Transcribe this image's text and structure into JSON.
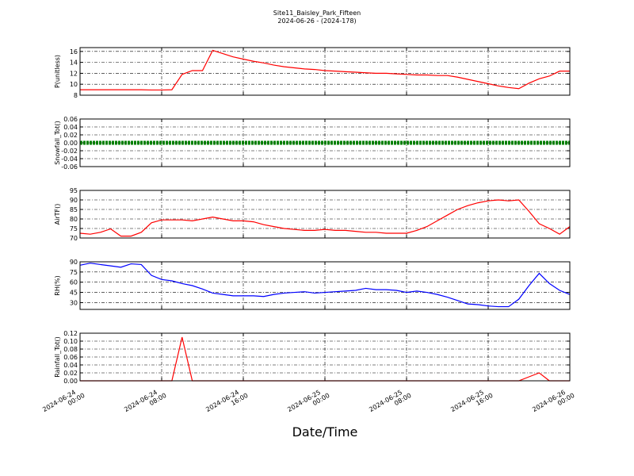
{
  "title": "Site11_Baisley_Park_Fifteen",
  "subtitle": "2024-06-26 - (2024-178)",
  "chart_data": [
    {
      "type": "line",
      "ylabel": "P(unitless)",
      "color": "#ff0000",
      "grid": true,
      "xlim": [
        "2024-06-24 00:00",
        "2024-06-26 00:00"
      ],
      "xticks": [
        "2024-06-24 00:00",
        "2024-06-24 08:00",
        "2024-06-24 16:00",
        "2024-06-25 00:00",
        "2024-06-25 08:00",
        "2024-06-25 16:00",
        "2024-06-26 00:00"
      ],
      "ylim": [
        8,
        16.7
      ],
      "yticks": [
        8,
        10,
        12,
        14,
        16
      ],
      "x": [
        "2024-06-24 00:00",
        "2024-06-24 01:00",
        "2024-06-24 02:00",
        "2024-06-24 03:00",
        "2024-06-24 04:00",
        "2024-06-24 05:00",
        "2024-06-24 06:00",
        "2024-06-24 07:00",
        "2024-06-24 08:00",
        "2024-06-24 09:00",
        "2024-06-24 10:00",
        "2024-06-24 11:00",
        "2024-06-24 12:00",
        "2024-06-24 13:00",
        "2024-06-24 14:00",
        "2024-06-24 15:00",
        "2024-06-24 16:00",
        "2024-06-24 17:00",
        "2024-06-24 18:00",
        "2024-06-24 19:00",
        "2024-06-24 20:00",
        "2024-06-24 21:00",
        "2024-06-24 22:00",
        "2024-06-24 23:00",
        "2024-06-25 00:00",
        "2024-06-25 01:00",
        "2024-06-25 02:00",
        "2024-06-25 03:00",
        "2024-06-25 04:00",
        "2024-06-25 05:00",
        "2024-06-25 06:00",
        "2024-06-25 07:00",
        "2024-06-25 08:00",
        "2024-06-25 09:00",
        "2024-06-25 10:00",
        "2024-06-25 11:00",
        "2024-06-25 12:00",
        "2024-06-25 13:00",
        "2024-06-25 14:00",
        "2024-06-25 15:00",
        "2024-06-25 16:00",
        "2024-06-25 17:00",
        "2024-06-25 18:00",
        "2024-06-25 19:00",
        "2024-06-25 20:00",
        "2024-06-25 21:00",
        "2024-06-25 22:00",
        "2024-06-25 23:00",
        "2024-06-26 00:00"
      ],
      "values": [
        9.0,
        9.0,
        9.0,
        9.0,
        9.0,
        9.0,
        9.0,
        8.95,
        8.95,
        9.0,
        11.8,
        12.5,
        12.5,
        16.2,
        15.6,
        15.0,
        14.6,
        14.2,
        13.9,
        13.5,
        13.2,
        13.0,
        12.8,
        12.7,
        12.5,
        12.4,
        12.3,
        12.2,
        12.1,
        12.0,
        12.0,
        11.9,
        11.8,
        11.7,
        11.7,
        11.6,
        11.6,
        11.3,
        10.9,
        10.5,
        10.1,
        9.7,
        9.4,
        9.2,
        10.2,
        11.0,
        11.5,
        12.4,
        12.4
      ]
    },
    {
      "type": "line",
      "ylabel": "Snowfall_Tot()",
      "color": "#008000",
      "grid": true,
      "xlim": [
        "2024-06-24 00:00",
        "2024-06-26 00:00"
      ],
      "xticks": [
        "2024-06-24 00:00",
        "2024-06-24 08:00",
        "2024-06-24 16:00",
        "2024-06-25 00:00",
        "2024-06-25 08:00",
        "2024-06-25 16:00",
        "2024-06-26 00:00"
      ],
      "ylim": [
        -0.06,
        0.06
      ],
      "yticks": [
        -0.06,
        -0.04,
        -0.02,
        {
          "value": 0,
          "label": "0.00"
        },
        0.02,
        0.04,
        0.06
      ],
      "x": [
        "2024-06-24 00:00",
        "2024-06-24 01:00",
        "2024-06-24 02:00",
        "2024-06-24 03:00",
        "2024-06-24 04:00",
        "2024-06-24 05:00",
        "2024-06-24 06:00",
        "2024-06-24 07:00",
        "2024-06-24 08:00",
        "2024-06-24 09:00",
        "2024-06-24 10:00",
        "2024-06-24 11:00",
        "2024-06-24 12:00",
        "2024-06-24 13:00",
        "2024-06-24 14:00",
        "2024-06-24 15:00",
        "2024-06-24 16:00",
        "2024-06-24 17:00",
        "2024-06-24 18:00",
        "2024-06-24 19:00",
        "2024-06-24 20:00",
        "2024-06-24 21:00",
        "2024-06-24 22:00",
        "2024-06-24 23:00",
        "2024-06-25 00:00",
        "2024-06-25 01:00",
        "2024-06-25 02:00",
        "2024-06-25 03:00",
        "2024-06-25 04:00",
        "2024-06-25 05:00",
        "2024-06-25 06:00",
        "2024-06-25 07:00",
        "2024-06-25 08:00",
        "2024-06-25 09:00",
        "2024-06-25 10:00",
        "2024-06-25 11:00",
        "2024-06-25 12:00",
        "2024-06-25 13:00",
        "2024-06-25 14:00",
        "2024-06-25 15:00",
        "2024-06-25 16:00",
        "2024-06-25 17:00",
        "2024-06-25 18:00",
        "2024-06-25 19:00",
        "2024-06-25 20:00",
        "2024-06-25 21:00",
        "2024-06-25 22:00",
        "2024-06-25 23:00",
        "2024-06-26 00:00"
      ],
      "values": [
        0,
        0,
        0,
        0,
        0,
        0,
        0,
        0,
        0,
        0,
        0,
        0,
        0,
        0,
        0,
        0,
        0,
        0,
        0,
        0,
        0,
        0,
        0,
        0,
        0,
        0,
        0,
        0,
        0,
        0,
        0,
        0,
        0,
        0,
        0,
        0,
        0,
        0,
        0,
        0,
        0,
        0,
        0,
        0,
        0,
        0,
        0,
        0,
        0
      ]
    },
    {
      "type": "line",
      "ylabel": "AirTF()",
      "color": "#ff0000",
      "grid": true,
      "xlim": [
        "2024-06-24 00:00",
        "2024-06-26 00:00"
      ],
      "xticks": [
        "2024-06-24 00:00",
        "2024-06-24 08:00",
        "2024-06-24 16:00",
        "2024-06-25 00:00",
        "2024-06-25 08:00",
        "2024-06-25 16:00",
        "2024-06-26 00:00"
      ],
      "ylim": [
        70,
        95
      ],
      "yticks": [
        70,
        75,
        80,
        85,
        90,
        95
      ],
      "x": [
        "2024-06-24 00:00",
        "2024-06-24 01:00",
        "2024-06-24 02:00",
        "2024-06-24 03:00",
        "2024-06-24 04:00",
        "2024-06-24 05:00",
        "2024-06-24 06:00",
        "2024-06-24 07:00",
        "2024-06-24 08:00",
        "2024-06-24 09:00",
        "2024-06-24 10:00",
        "2024-06-24 11:00",
        "2024-06-24 12:00",
        "2024-06-24 13:00",
        "2024-06-24 14:00",
        "2024-06-24 15:00",
        "2024-06-24 16:00",
        "2024-06-24 17:00",
        "2024-06-24 18:00",
        "2024-06-24 19:00",
        "2024-06-24 20:00",
        "2024-06-24 21:00",
        "2024-06-24 22:00",
        "2024-06-24 23:00",
        "2024-06-25 00:00",
        "2024-06-25 01:00",
        "2024-06-25 02:00",
        "2024-06-25 03:00",
        "2024-06-25 04:00",
        "2024-06-25 05:00",
        "2024-06-25 06:00",
        "2024-06-25 07:00",
        "2024-06-25 08:00",
        "2024-06-25 09:00",
        "2024-06-25 10:00",
        "2024-06-25 11:00",
        "2024-06-25 12:00",
        "2024-06-25 13:00",
        "2024-06-25 14:00",
        "2024-06-25 15:00",
        "2024-06-25 16:00",
        "2024-06-25 17:00",
        "2024-06-25 18:00",
        "2024-06-25 19:00",
        "2024-06-25 20:00",
        "2024-06-25 21:00",
        "2024-06-25 22:00",
        "2024-06-25 23:00",
        "2024-06-26 00:00"
      ],
      "values": [
        72.5,
        72,
        73,
        74.8,
        71,
        71,
        73,
        78,
        79.5,
        79.5,
        79.5,
        79,
        80,
        81,
        80,
        79,
        79,
        78.5,
        77,
        76,
        75,
        74.5,
        74,
        74,
        74.5,
        74,
        74,
        73.5,
        73,
        73,
        72.5,
        72.5,
        72.5,
        74,
        76,
        79,
        82,
        85,
        87,
        88.5,
        89.5,
        90,
        89.5,
        90,
        84,
        77.5,
        75,
        72,
        76
      ]
    },
    {
      "type": "line",
      "ylabel": "RH(%)",
      "color": "#0000ff",
      "grid": true,
      "xlim": [
        "2024-06-24 00:00",
        "2024-06-26 00:00"
      ],
      "xticks": [
        "2024-06-24 00:00",
        "2024-06-24 08:00",
        "2024-06-24 16:00",
        "2024-06-25 00:00",
        "2024-06-25 08:00",
        "2024-06-25 16:00",
        "2024-06-26 00:00"
      ],
      "ylim": [
        20,
        90
      ],
      "yticks": [
        30,
        45,
        60,
        75,
        90
      ],
      "x": [
        "2024-06-24 00:00",
        "2024-06-24 01:00",
        "2024-06-24 02:00",
        "2024-06-24 03:00",
        "2024-06-24 04:00",
        "2024-06-24 05:00",
        "2024-06-24 06:00",
        "2024-06-24 07:00",
        "2024-06-24 08:00",
        "2024-06-24 09:00",
        "2024-06-24 10:00",
        "2024-06-24 11:00",
        "2024-06-24 12:00",
        "2024-06-24 13:00",
        "2024-06-24 14:00",
        "2024-06-24 15:00",
        "2024-06-24 16:00",
        "2024-06-24 17:00",
        "2024-06-24 18:00",
        "2024-06-24 19:00",
        "2024-06-24 20:00",
        "2024-06-24 21:00",
        "2024-06-24 22:00",
        "2024-06-24 23:00",
        "2024-06-25 00:00",
        "2024-06-25 01:00",
        "2024-06-25 02:00",
        "2024-06-25 03:00",
        "2024-06-25 04:00",
        "2024-06-25 05:00",
        "2024-06-25 06:00",
        "2024-06-25 07:00",
        "2024-06-25 08:00",
        "2024-06-25 09:00",
        "2024-06-25 10:00",
        "2024-06-25 11:00",
        "2024-06-25 12:00",
        "2024-06-25 13:00",
        "2024-06-25 14:00",
        "2024-06-25 15:00",
        "2024-06-25 16:00",
        "2024-06-25 17:00",
        "2024-06-25 18:00",
        "2024-06-25 19:00",
        "2024-06-25 20:00",
        "2024-06-25 21:00",
        "2024-06-25 22:00",
        "2024-06-25 23:00",
        "2024-06-26 00:00"
      ],
      "values": [
        85,
        88,
        86,
        84,
        82,
        87,
        86,
        70,
        64,
        62,
        58,
        55,
        50,
        44,
        42,
        40,
        40,
        40,
        39,
        42,
        44,
        45,
        46,
        44,
        45,
        46,
        47,
        48,
        51,
        49,
        49,
        48,
        45,
        47,
        45,
        42,
        38,
        33,
        28,
        27,
        25,
        24,
        24,
        35,
        55,
        73,
        58,
        48,
        42
      ]
    },
    {
      "type": "line",
      "ylabel": "Rainfall_Tot()",
      "xlabel": "Date/Time",
      "color": "#ff0000",
      "grid": true,
      "xlim": [
        "2024-06-24 00:00",
        "2024-06-26 00:00"
      ],
      "xticks": [
        "2024-06-24 00:00",
        "2024-06-24 08:00",
        "2024-06-24 16:00",
        "2024-06-25 00:00",
        "2024-06-25 08:00",
        "2024-06-25 16:00",
        "2024-06-26 00:00"
      ],
      "ylim": [
        0,
        0.12
      ],
      "yticks": [
        {
          "value": 0,
          "label": "0.00"
        },
        0.02,
        0.04,
        0.06,
        0.08,
        {
          "value": 0.1,
          "label": "0.10"
        },
        0.12
      ],
      "x": [
        "2024-06-24 00:00",
        "2024-06-24 01:00",
        "2024-06-24 02:00",
        "2024-06-24 03:00",
        "2024-06-24 04:00",
        "2024-06-24 05:00",
        "2024-06-24 06:00",
        "2024-06-24 07:00",
        "2024-06-24 08:00",
        "2024-06-24 09:00",
        "2024-06-24 10:00",
        "2024-06-24 11:00",
        "2024-06-24 12:00",
        "2024-06-24 13:00",
        "2024-06-24 14:00",
        "2024-06-24 15:00",
        "2024-06-24 16:00",
        "2024-06-24 17:00",
        "2024-06-24 18:00",
        "2024-06-24 19:00",
        "2024-06-24 20:00",
        "2024-06-24 21:00",
        "2024-06-24 22:00",
        "2024-06-24 23:00",
        "2024-06-25 00:00",
        "2024-06-25 01:00",
        "2024-06-25 02:00",
        "2024-06-25 03:00",
        "2024-06-25 04:00",
        "2024-06-25 05:00",
        "2024-06-25 06:00",
        "2024-06-25 07:00",
        "2024-06-25 08:00",
        "2024-06-25 09:00",
        "2024-06-25 10:00",
        "2024-06-25 11:00",
        "2024-06-25 12:00",
        "2024-06-25 13:00",
        "2024-06-25 14:00",
        "2024-06-25 15:00",
        "2024-06-25 16:00",
        "2024-06-25 17:00",
        "2024-06-25 18:00",
        "2024-06-25 19:00",
        "2024-06-25 20:00",
        "2024-06-25 21:00",
        "2024-06-25 22:00",
        "2024-06-25 23:00",
        "2024-06-26 00:00"
      ],
      "values": [
        0,
        0,
        0,
        0,
        0,
        0,
        0,
        0,
        0,
        0,
        0.11,
        0,
        0,
        0,
        0,
        0,
        0,
        0,
        0,
        0,
        0,
        0,
        0,
        0,
        0,
        0,
        0,
        0,
        0,
        0,
        0,
        0,
        0,
        0,
        0,
        0,
        0,
        0,
        0,
        0,
        0,
        0,
        0,
        0,
        0.01,
        0.02,
        0,
        0,
        0
      ]
    }
  ]
}
